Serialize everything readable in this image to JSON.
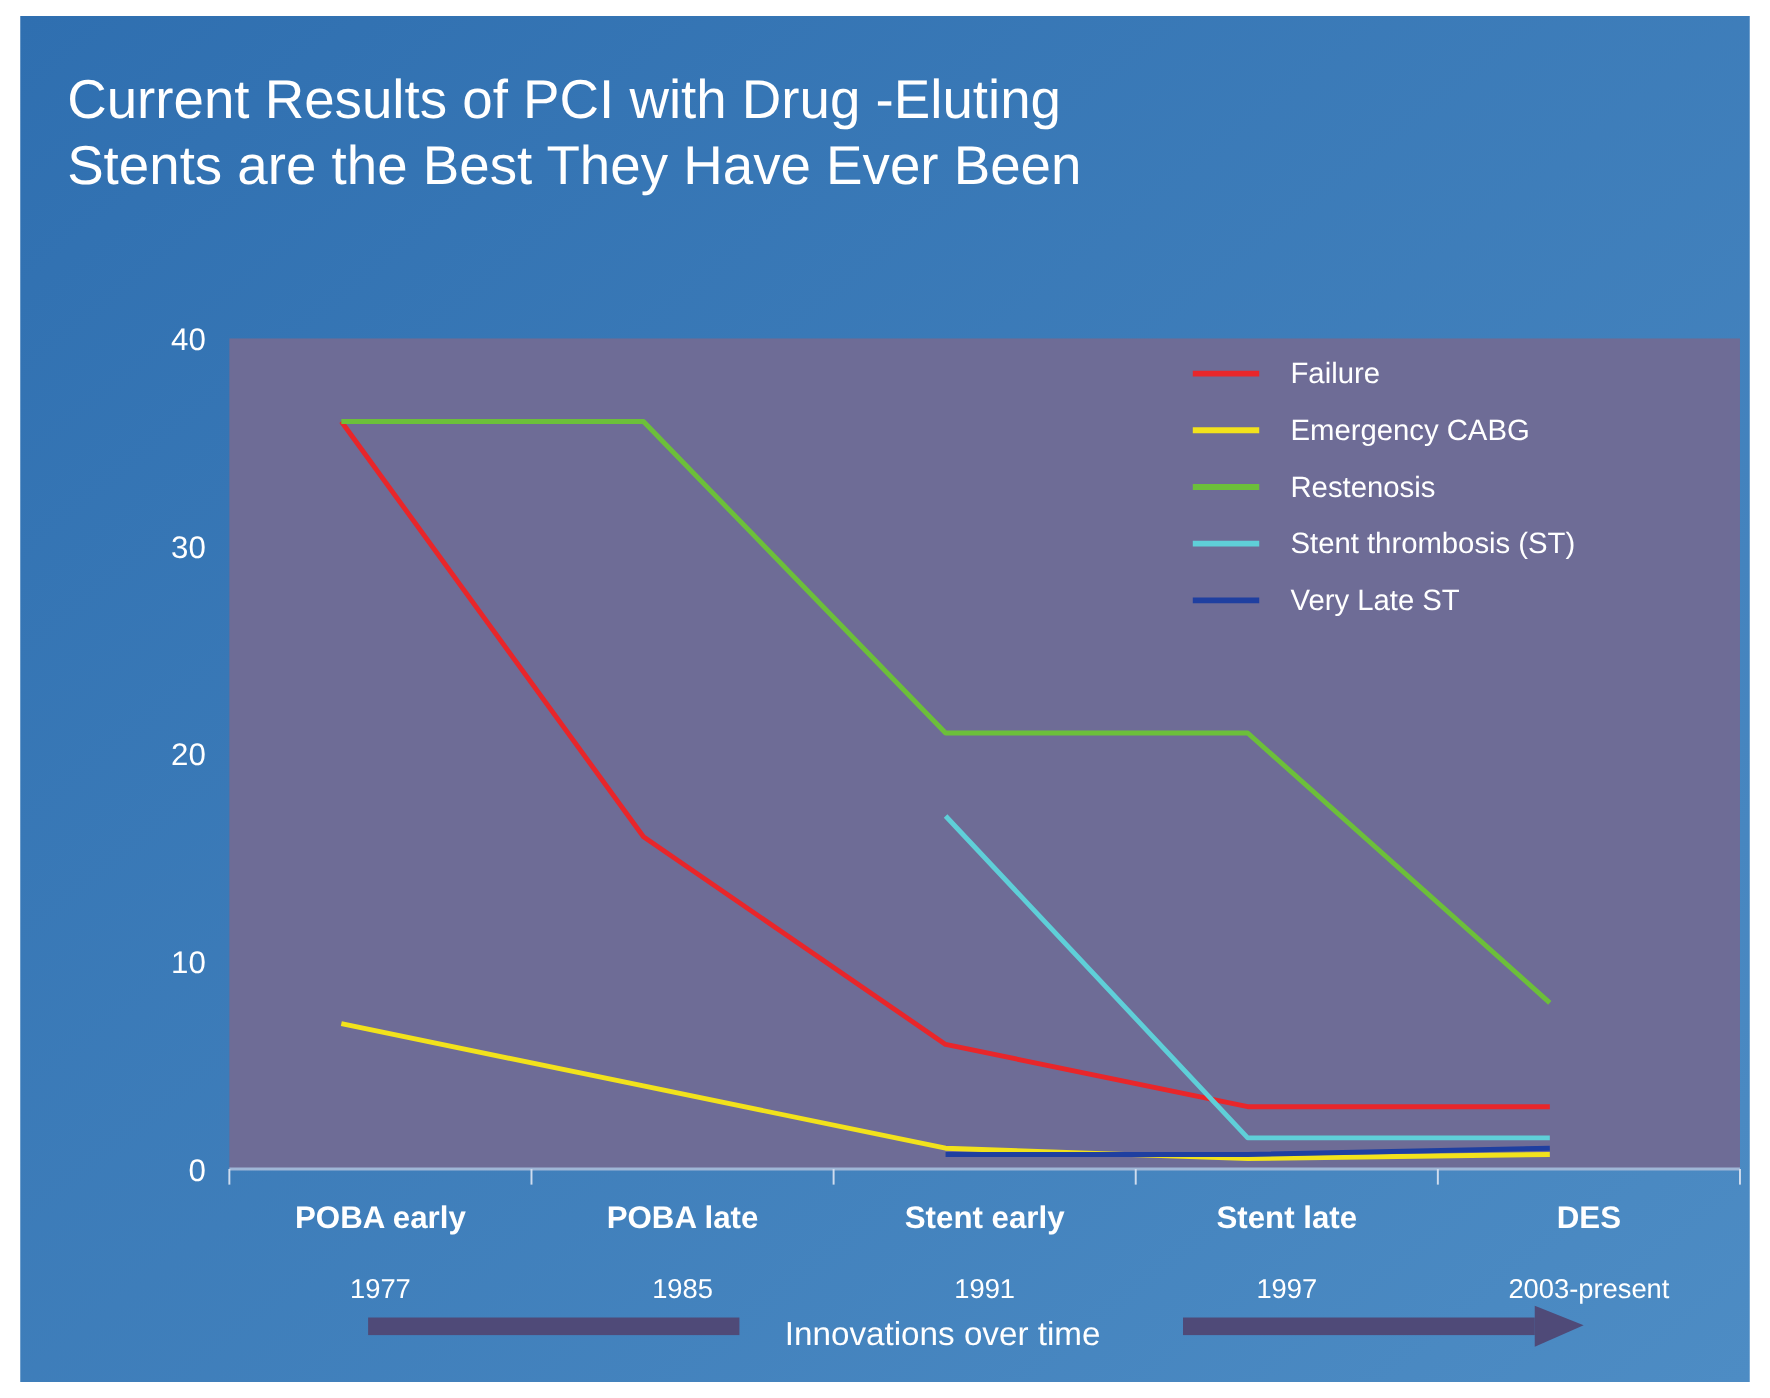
{
  "chart_data": {
    "type": "line",
    "title": "Current Results of PCI with Drug -Eluting Stents are the Best They Have Ever Been",
    "xlabel": "Innovations over time",
    "categories": [
      "POBA early\n1977",
      "POBA late\n1985",
      "Stent early\n1991",
      "Stent late\n1997",
      "DES\n2003-present"
    ],
    "series": [
      {
        "name": "Failure",
        "color": "#e8262a",
        "values": [
          36,
          16,
          6,
          3,
          3
        ]
      },
      {
        "name": "Emergency CABG",
        "color": "#f2e21c",
        "values": [
          7,
          4,
          1,
          0.5,
          0.7
        ]
      },
      {
        "name": "Restenosis",
        "color": "#6cbf3a",
        "values": [
          36,
          36,
          21,
          21,
          8
        ]
      },
      {
        "name": "Stent thrombosis (ST)",
        "color": "#5fcfd8",
        "values": [
          null,
          null,
          17,
          1.5,
          1.5
        ]
      },
      {
        "name": "Very Late ST",
        "color": "#1f3fa0",
        "values": [
          null,
          null,
          0.7,
          0.7,
          1
        ]
      }
    ],
    "ylim": [
      0,
      40
    ],
    "yticks": [
      0,
      10,
      20,
      30,
      40
    ],
    "legend": "top right",
    "line_style": "solid"
  }
}
